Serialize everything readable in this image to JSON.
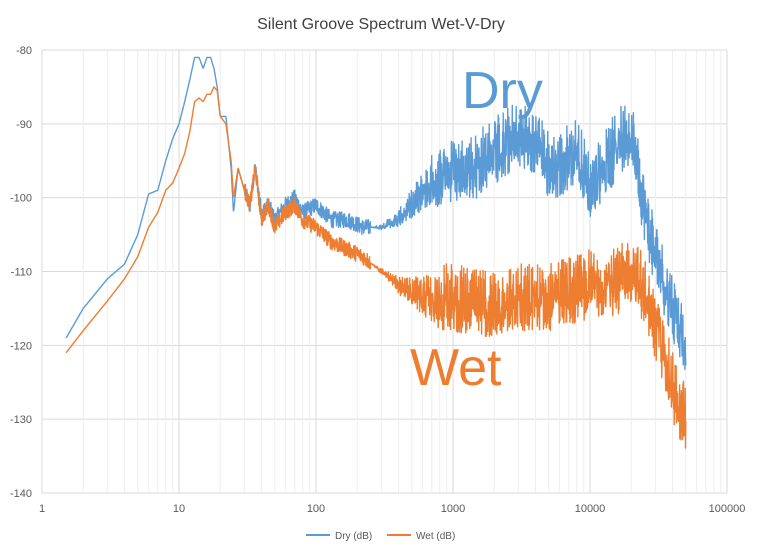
{
  "chart_data": {
    "type": "line",
    "title": "Silent Groove Spectrum Wet-V-Dry",
    "xscale": "log",
    "xlim": [
      1,
      100000
    ],
    "ylim": [
      -140,
      -80
    ],
    "grid": true,
    "legend_position": "bottom",
    "x_ticks": [
      1,
      10,
      100,
      1000,
      10000,
      100000
    ],
    "x_tick_labels": [
      "1",
      "10",
      "100",
      "1000",
      "10000",
      "100000"
    ],
    "y_ticks": [
      -140,
      -130,
      -120,
      -110,
      -100,
      -90,
      -80
    ],
    "y_tick_labels": [
      "-140",
      "-130",
      "-120",
      "-110",
      "-100",
      "-90",
      "-80"
    ],
    "annotations": [
      {
        "text": "Dry",
        "color": "#5B9BD5"
      },
      {
        "text": "Wet",
        "color": "#ED7D31"
      }
    ],
    "series": [
      {
        "name": "Dry (dB)",
        "color": "#5B9BD5",
        "noise_amplitude_db": 5,
        "x": [
          1.5,
          2,
          3,
          4,
          5,
          6,
          7,
          8,
          9,
          10,
          11,
          12,
          13,
          14,
          15,
          16,
          17,
          18,
          19,
          20,
          22,
          24,
          25,
          27,
          30,
          33,
          36,
          40,
          45,
          50,
          60,
          70,
          80,
          100,
          130,
          170,
          220,
          300,
          400,
          500,
          700,
          1000,
          1500,
          2000,
          3000,
          4000,
          5000,
          6000,
          8000,
          10000,
          13000,
          16000,
          20000,
          25000,
          30000,
          35000,
          40000,
          45000,
          50000
        ],
        "y": [
          -119,
          -115,
          -111,
          -109,
          -105,
          -99.5,
          -99,
          -95,
          -92,
          -90,
          -87,
          -84,
          -81,
          -81,
          -82.5,
          -81,
          -81,
          -82.5,
          -85,
          -89,
          -89,
          -96,
          -102,
          -96,
          -99,
          -101,
          -96,
          -102,
          -101,
          -103,
          -101,
          -100,
          -102,
          -101,
          -103,
          -103,
          -104,
          -104,
          -103,
          -101,
          -98,
          -97,
          -96,
          -94,
          -92,
          -93,
          -96,
          -96,
          -94,
          -99,
          -96,
          -93,
          -91,
          -102,
          -108,
          -112,
          -115,
          -118,
          -120
        ]
      },
      {
        "name": "Wet (dB)",
        "color": "#ED7D31",
        "noise_amplitude_db": 5,
        "x": [
          1.5,
          2,
          3,
          4,
          5,
          6,
          7,
          8,
          9,
          10,
          11,
          12,
          13,
          14,
          15,
          16,
          17,
          18,
          19,
          20,
          22,
          24,
          25,
          27,
          30,
          33,
          36,
          40,
          45,
          50,
          60,
          70,
          80,
          100,
          130,
          170,
          220,
          300,
          400,
          500,
          700,
          1000,
          1500,
          2000,
          3000,
          4000,
          5000,
          6000,
          8000,
          10000,
          13000,
          16000,
          20000,
          25000,
          30000,
          35000,
          40000,
          45000,
          50000
        ],
        "y": [
          -121,
          -118,
          -114,
          -111,
          -108,
          -104,
          -102,
          -99,
          -98,
          -96,
          -94,
          -91,
          -87,
          -86.5,
          -87,
          -86,
          -86,
          -85,
          -85.5,
          -89,
          -90,
          -95,
          -100,
          -96,
          -99,
          -101,
          -96,
          -103,
          -101,
          -104,
          -102,
          -101,
          -103,
          -104,
          -106,
          -107,
          -108,
          -110,
          -112,
          -113,
          -114,
          -114,
          -115,
          -114.5,
          -114,
          -114,
          -114,
          -113,
          -113,
          -112,
          -112,
          -112,
          -110,
          -113,
          -118,
          -122,
          -126,
          -129,
          -130
        ]
      }
    ]
  }
}
